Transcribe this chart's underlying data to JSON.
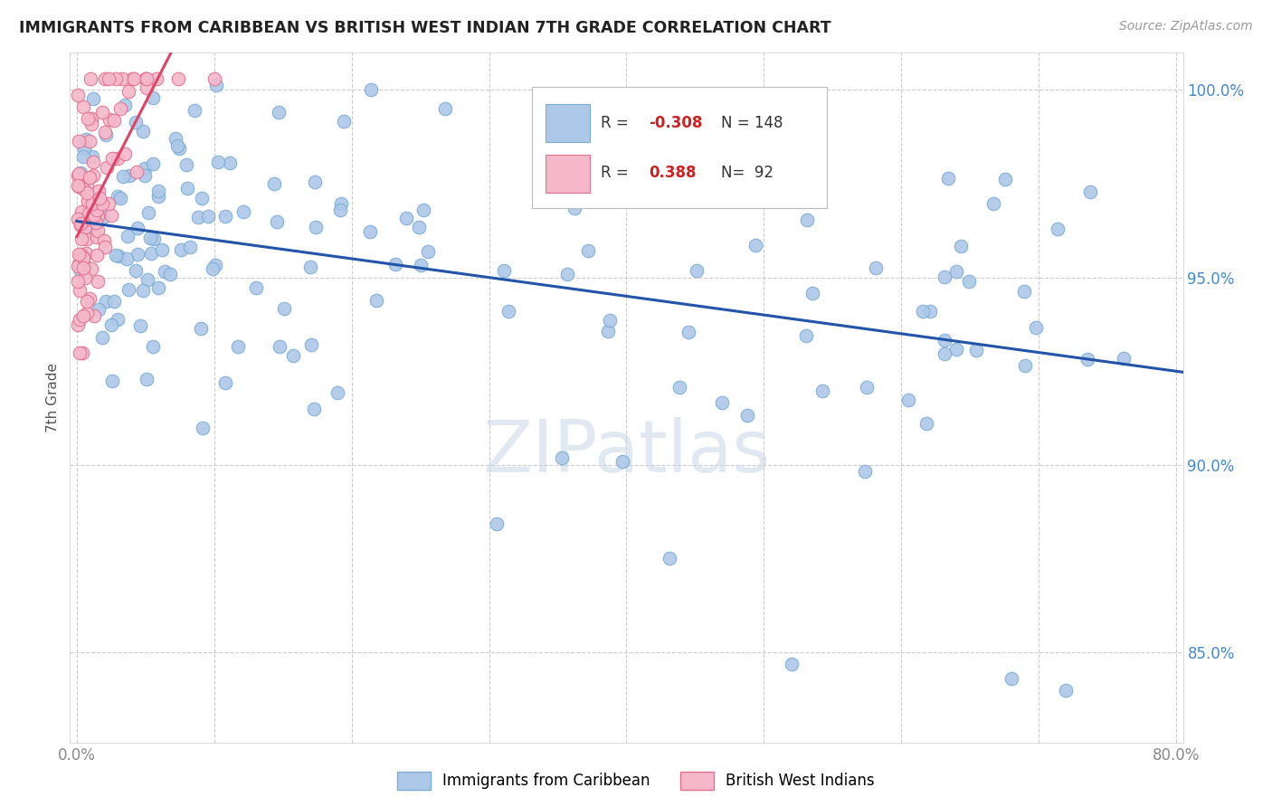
{
  "title": "IMMIGRANTS FROM CARIBBEAN VS BRITISH WEST INDIAN 7TH GRADE CORRELATION CHART",
  "source_text": "Source: ZipAtlas.com",
  "ylabel": "7th Grade",
  "watermark": "ZIPatlas",
  "xlim": [
    -0.005,
    0.805
  ],
  "ylim": [
    0.826,
    1.01
  ],
  "xtick_positions": [
    0.0,
    0.1,
    0.2,
    0.3,
    0.4,
    0.5,
    0.6,
    0.7,
    0.8
  ],
  "xticklabels": [
    "0.0%",
    "",
    "",
    "",
    "",
    "",
    "",
    "",
    "80.0%"
  ],
  "ytick_positions": [
    0.85,
    0.9,
    0.95,
    1.0
  ],
  "yticklabels": [
    "85.0%",
    "90.0%",
    "95.0%",
    "100.0%"
  ],
  "legend_R1": "-0.308",
  "legend_N1": "148",
  "legend_R2": "0.388",
  "legend_N2": "92",
  "blue_color": "#adc8e8",
  "blue_edge": "#7aacd4",
  "blue_line_color": "#2255aa",
  "pink_color": "#f5b8ca",
  "pink_edge": "#e07090",
  "pink_line_color": "#dd4466",
  "grid_color": "#cccccc",
  "title_color": "#222222",
  "axis_label_color": "#555555",
  "ytick_color": "#4488cc",
  "xtick_color": "#888888"
}
